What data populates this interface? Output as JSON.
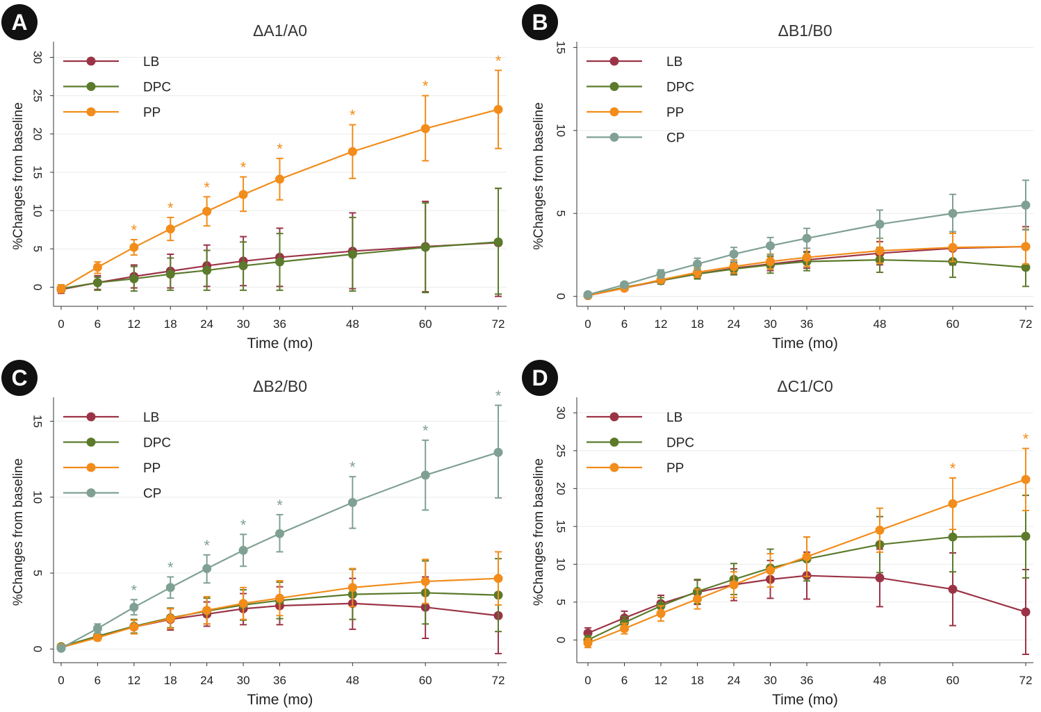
{
  "colors": {
    "LB": "#9b3346",
    "DPC": "#5b7a2b",
    "PP": "#f28c1a",
    "CP": "#7fa093",
    "axis": "#333333",
    "grid": "#e8ece8",
    "badge_bg": "#111111",
    "badge_fg": "#ffffff"
  },
  "chart_data": [
    {
      "panel_label": "A",
      "type": "line",
      "title": "ΔA1/A0",
      "xlabel": "Time (mo)",
      "ylabel": "%Changes from baseline",
      "x": [
        0,
        6,
        12,
        18,
        24,
        30,
        36,
        48,
        60,
        72
      ],
      "xticks": [
        0,
        6,
        12,
        18,
        24,
        30,
        36,
        48,
        60,
        72
      ],
      "ylim": [
        -2.5,
        31.5
      ],
      "yticks": [
        0,
        5,
        10,
        15,
        20,
        25,
        30
      ],
      "legend_position": "top-left",
      "grid": true,
      "series": [
        {
          "name": "LB",
          "values": [
            -0.3,
            0.6,
            1.4,
            2.1,
            2.8,
            3.4,
            3.9,
            4.7,
            5.3,
            5.8
          ],
          "lower": [
            -0.8,
            -0.3,
            -0.1,
            -0.1,
            0.1,
            0.2,
            0.1,
            -0.2,
            -0.6,
            -1.2
          ],
          "upper": [
            0.3,
            1.5,
            2.9,
            4.3,
            5.5,
            6.6,
            7.7,
            9.7,
            11.2,
            12.9
          ]
        },
        {
          "name": "DPC",
          "values": [
            -0.2,
            0.6,
            1.1,
            1.7,
            2.2,
            2.8,
            3.3,
            4.3,
            5.2,
            5.9
          ],
          "lower": [
            -0.7,
            -0.4,
            -0.5,
            -0.4,
            -0.4,
            -0.4,
            -0.4,
            -0.5,
            -0.7,
            -0.9
          ],
          "upper": [
            0.3,
            1.3,
            2.7,
            3.8,
            4.8,
            5.9,
            7.0,
            9.1,
            11.0,
            12.9
          ]
        },
        {
          "name": "PP",
          "values": [
            -0.2,
            2.6,
            5.2,
            7.6,
            9.9,
            12.1,
            14.1,
            17.7,
            20.7,
            23.2
          ],
          "lower": [
            -0.7,
            1.8,
            4.2,
            6.1,
            8.0,
            9.9,
            11.4,
            14.2,
            16.5,
            18.1
          ],
          "upper": [
            0.3,
            3.3,
            6.2,
            9.1,
            11.8,
            14.4,
            16.8,
            21.2,
            25.0,
            28.3
          ]
        }
      ],
      "annotations": [
        {
          "text": "*",
          "series": "PP",
          "x": [
            12,
            18,
            24,
            30,
            36,
            48,
            60,
            72
          ]
        }
      ]
    },
    {
      "panel_label": "B",
      "type": "line",
      "title": "ΔB1/B0",
      "xlabel": "Time (mo)",
      "ylabel": "%Changes from baseline",
      "x": [
        0,
        6,
        12,
        18,
        24,
        30,
        36,
        48,
        60,
        72
      ],
      "xticks": [
        0,
        6,
        12,
        18,
        24,
        30,
        36,
        48,
        60,
        72
      ],
      "ylim": [
        -0.6,
        15.1
      ],
      "yticks": [
        0,
        5,
        10,
        15
      ],
      "legend_position": "top-left",
      "grid": true,
      "series": [
        {
          "name": "LB",
          "values": [
            0.05,
            0.5,
            0.95,
            1.35,
            1.7,
            1.95,
            2.2,
            2.6,
            2.9,
            3.0
          ],
          "lower": [
            0.0,
            0.4,
            0.75,
            1.1,
            1.35,
            1.55,
            1.7,
            1.9,
            1.9,
            1.8
          ],
          "upper": [
            0.15,
            0.6,
            1.15,
            1.6,
            2.05,
            2.4,
            2.7,
            3.3,
            3.9,
            4.2
          ]
        },
        {
          "name": "DPC",
          "values": [
            0.05,
            0.55,
            0.95,
            1.35,
            1.65,
            1.9,
            2.1,
            2.2,
            2.1,
            1.75
          ],
          "lower": [
            0.0,
            0.45,
            0.75,
            1.05,
            1.3,
            1.4,
            1.55,
            1.45,
            1.15,
            0.6
          ],
          "upper": [
            0.15,
            0.65,
            1.15,
            1.65,
            2.0,
            2.4,
            2.65,
            2.95,
            3.05,
            2.9
          ]
        },
        {
          "name": "PP",
          "values": [
            0.05,
            0.5,
            1.0,
            1.45,
            1.8,
            2.1,
            2.35,
            2.75,
            2.95,
            3.0
          ],
          "lower": [
            0.0,
            0.4,
            0.8,
            1.15,
            1.4,
            1.65,
            1.8,
            2.0,
            2.1,
            1.95
          ],
          "upper": [
            0.15,
            0.6,
            1.2,
            1.75,
            2.2,
            2.55,
            2.9,
            3.5,
            3.8,
            4.05
          ]
        },
        {
          "name": "CP",
          "values": [
            0.1,
            0.7,
            1.35,
            1.95,
            2.55,
            3.05,
            3.5,
            4.35,
            5.0,
            5.5
          ],
          "lower": [
            0.0,
            0.55,
            1.1,
            1.6,
            2.1,
            2.5,
            2.9,
            3.5,
            3.9,
            4.0
          ],
          "upper": [
            0.2,
            0.85,
            1.6,
            2.3,
            2.95,
            3.55,
            4.1,
            5.2,
            6.15,
            7.0
          ]
        }
      ],
      "annotations": []
    },
    {
      "panel_label": "C",
      "type": "line",
      "title": "ΔB2/B0",
      "xlabel": "Time (mo)",
      "ylabel": "%Changes from baseline",
      "x": [
        0,
        6,
        12,
        18,
        24,
        30,
        36,
        48,
        60,
        72
      ],
      "xticks": [
        0,
        6,
        12,
        18,
        24,
        30,
        36,
        48,
        60,
        72
      ],
      "ylim": [
        -0.9,
        16.3
      ],
      "yticks": [
        0,
        5,
        10,
        15
      ],
      "legend_position": "top-left",
      "grid": true,
      "series": [
        {
          "name": "LB",
          "values": [
            0.1,
            0.8,
            1.45,
            1.95,
            2.3,
            2.65,
            2.85,
            3.0,
            2.75,
            2.2
          ],
          "lower": [
            0.0,
            0.6,
            1.0,
            1.25,
            1.5,
            1.6,
            1.6,
            1.3,
            0.7,
            -0.3
          ],
          "upper": [
            0.2,
            1.0,
            1.9,
            2.65,
            3.1,
            3.65,
            4.1,
            4.65,
            4.75,
            4.7
          ]
        },
        {
          "name": "DPC",
          "values": [
            0.15,
            0.85,
            1.5,
            2.05,
            2.5,
            2.9,
            3.2,
            3.6,
            3.7,
            3.55
          ],
          "lower": [
            0.0,
            0.65,
            1.05,
            1.4,
            1.65,
            1.9,
            2.0,
            1.95,
            1.65,
            1.15
          ],
          "upper": [
            0.3,
            1.05,
            1.95,
            2.7,
            3.35,
            3.9,
            4.4,
            5.25,
            5.8,
            5.95
          ]
        },
        {
          "name": "PP",
          "values": [
            0.1,
            0.75,
            1.45,
            2.0,
            2.55,
            3.0,
            3.35,
            4.05,
            4.45,
            4.65
          ],
          "lower": [
            0.0,
            0.55,
            1.0,
            1.35,
            1.65,
            1.95,
            2.2,
            2.8,
            3.0,
            2.9
          ],
          "upper": [
            0.2,
            0.95,
            1.9,
            2.65,
            3.45,
            4.05,
            4.5,
            5.3,
            5.9,
            6.4
          ]
        },
        {
          "name": "CP",
          "values": [
            0.05,
            1.35,
            2.75,
            4.05,
            5.3,
            6.5,
            7.6,
            9.65,
            11.45,
            12.95
          ],
          "lower": [
            0.0,
            1.05,
            2.25,
            3.35,
            4.35,
            5.45,
            6.4,
            7.95,
            9.15,
            9.95
          ],
          "upper": [
            0.1,
            1.65,
            3.25,
            4.75,
            6.2,
            7.55,
            8.85,
            11.35,
            13.75,
            16.05
          ]
        }
      ],
      "annotations": [
        {
          "text": "*",
          "series": "CP",
          "x": [
            12,
            18,
            24,
            30,
            36,
            48,
            60,
            72
          ]
        }
      ]
    },
    {
      "panel_label": "D",
      "type": "line",
      "title": "ΔC1/C0",
      "xlabel": "Time (mo)",
      "ylabel": "%Changes from baseline",
      "x": [
        0,
        6,
        12,
        18,
        24,
        30,
        36,
        48,
        60,
        72
      ],
      "xticks": [
        0,
        6,
        12,
        18,
        24,
        30,
        36,
        48,
        60,
        72
      ],
      "ylim": [
        -3.0,
        31.5
      ],
      "yticks": [
        0,
        5,
        10,
        15,
        20,
        25,
        30
      ],
      "legend_position": "top-left",
      "grid": true,
      "series": [
        {
          "name": "LB",
          "values": [
            0.9,
            2.9,
            4.8,
            6.3,
            7.3,
            8.0,
            8.5,
            8.2,
            6.7,
            3.7
          ],
          "lower": [
            0.2,
            2.0,
            3.7,
            4.7,
            5.2,
            5.5,
            5.4,
            4.4,
            1.9,
            -1.9
          ],
          "upper": [
            1.6,
            3.8,
            5.9,
            7.9,
            9.4,
            10.5,
            11.6,
            12.0,
            11.5,
            9.3
          ]
        },
        {
          "name": "DPC",
          "values": [
            0.0,
            2.3,
            4.5,
            6.4,
            8.0,
            9.5,
            10.7,
            12.6,
            13.6,
            13.7
          ],
          "lower": [
            -0.6,
            1.5,
            3.4,
            4.8,
            6.0,
            7.0,
            7.8,
            8.9,
            9.0,
            8.2
          ],
          "upper": [
            0.6,
            3.1,
            5.6,
            8.0,
            10.1,
            12.0,
            13.6,
            16.3,
            18.2,
            19.1
          ]
        },
        {
          "name": "PP",
          "values": [
            -0.4,
            1.5,
            3.5,
            5.4,
            7.3,
            9.2,
            11.0,
            14.5,
            18.0,
            21.2
          ],
          "lower": [
            -1.0,
            0.8,
            2.5,
            4.1,
            5.6,
            7.0,
            8.4,
            11.6,
            14.6,
            17.1
          ],
          "upper": [
            0.2,
            2.2,
            4.5,
            6.7,
            9.0,
            11.4,
            13.6,
            17.4,
            21.4,
            25.3
          ]
        }
      ],
      "annotations": [
        {
          "text": "*",
          "series": "PP",
          "x": [
            60,
            72
          ]
        }
      ]
    }
  ]
}
